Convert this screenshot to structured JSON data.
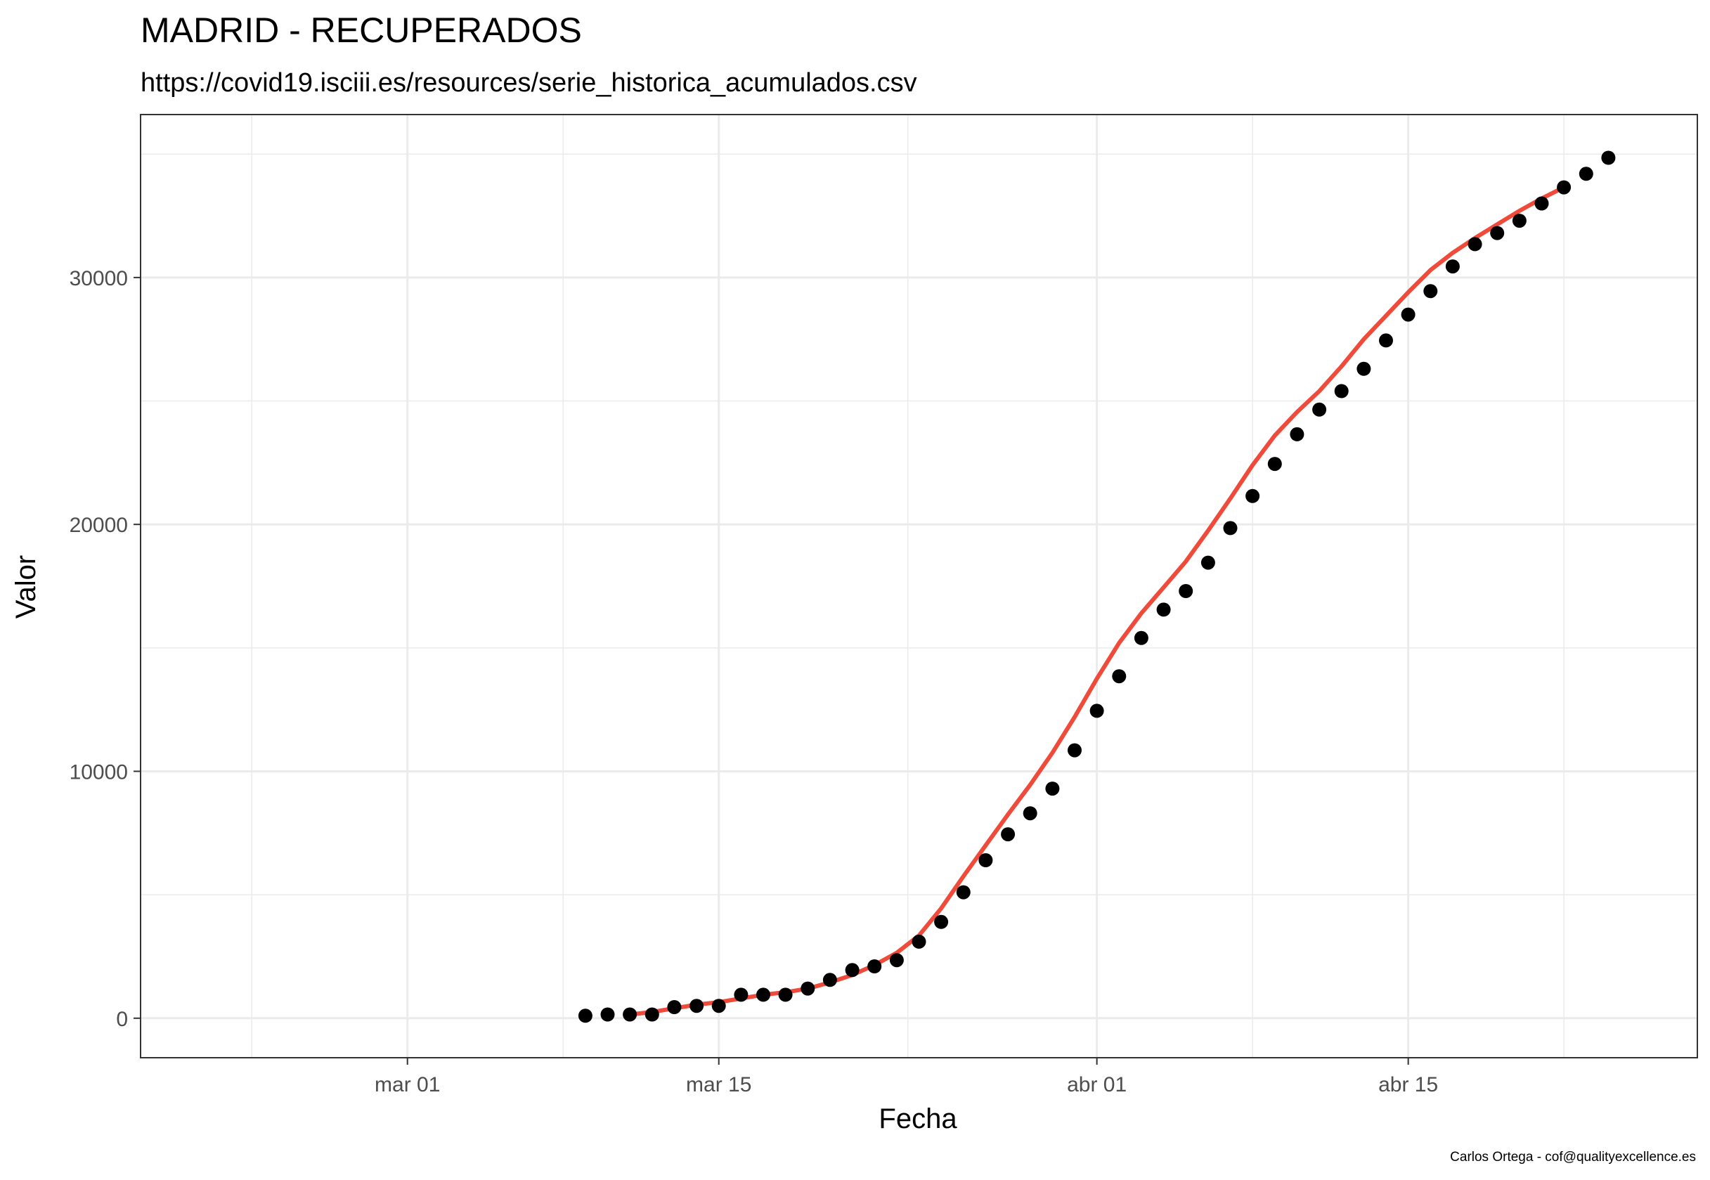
{
  "chart_data": {
    "type": "scatter",
    "title": "MADRID - RECUPERADOS",
    "subtitle": "https://covid19.isciii.es/resources/serie_historica_acumulados.csv",
    "xlabel": "Fecha",
    "ylabel": "Valor",
    "caption": "Carlos Ortega - cof@qualityexcellence.es",
    "x_ticks": [
      {
        "date": "2020-03-01",
        "label": "mar 01"
      },
      {
        "date": "2020-03-15",
        "label": "mar 15"
      },
      {
        "date": "2020-04-01",
        "label": "abr 01"
      },
      {
        "date": "2020-04-15",
        "label": "abr 15"
      }
    ],
    "y_ticks": [
      0,
      10000,
      20000,
      30000
    ],
    "xlim": [
      "2020-02-18",
      "2020-04-28"
    ],
    "ylim": [
      -1600,
      36600
    ],
    "grid": true,
    "colors": {
      "points": "#000000",
      "smooth": "#f04a3b",
      "grid": "#ebebeb",
      "border": "#333333"
    },
    "series": [
      {
        "kind": "points",
        "x": [
          "2020-03-09",
          "2020-03-10",
          "2020-03-11",
          "2020-03-12",
          "2020-03-13",
          "2020-03-14",
          "2020-03-15",
          "2020-03-16",
          "2020-03-17",
          "2020-03-18",
          "2020-03-19",
          "2020-03-20",
          "2020-03-21",
          "2020-03-22",
          "2020-03-23",
          "2020-03-24",
          "2020-03-25",
          "2020-03-26",
          "2020-03-27",
          "2020-03-28",
          "2020-03-29",
          "2020-03-30",
          "2020-03-31",
          "2020-04-01",
          "2020-04-02",
          "2020-04-03",
          "2020-04-04",
          "2020-04-05",
          "2020-04-06",
          "2020-04-07",
          "2020-04-08",
          "2020-04-09",
          "2020-04-10",
          "2020-04-11",
          "2020-04-12",
          "2020-04-13",
          "2020-04-14",
          "2020-04-15",
          "2020-04-16",
          "2020-04-17",
          "2020-04-18",
          "2020-04-19",
          "2020-04-20",
          "2020-04-21",
          "2020-04-22",
          "2020-04-23",
          "2020-04-24"
        ],
        "y": [
          100,
          150,
          150,
          150,
          450,
          500,
          500,
          950,
          950,
          950,
          1200,
          1550,
          1950,
          2100,
          2350,
          3100,
          3900,
          5100,
          6400,
          7450,
          8300,
          9300,
          10850,
          12450,
          13850,
          15400,
          16550,
          17300,
          18450,
          19850,
          21150,
          22450,
          23650,
          24650,
          25400,
          26300,
          27450,
          28500,
          29450,
          30450,
          31350,
          31800,
          32300,
          33000,
          33650,
          34200,
          34850
        ]
      },
      {
        "kind": "smooth",
        "x": [
          "2020-03-11",
          "2020-03-12",
          "2020-03-13",
          "2020-03-14",
          "2020-03-15",
          "2020-03-16",
          "2020-03-17",
          "2020-03-18",
          "2020-03-19",
          "2020-03-20",
          "2020-03-21",
          "2020-03-22",
          "2020-03-23",
          "2020-03-24",
          "2020-03-25",
          "2020-03-26",
          "2020-03-27",
          "2020-03-28",
          "2020-03-29",
          "2020-03-30",
          "2020-03-31",
          "2020-04-01",
          "2020-04-02",
          "2020-04-03",
          "2020-04-04",
          "2020-04-05",
          "2020-04-06",
          "2020-04-07",
          "2020-04-08",
          "2020-04-09",
          "2020-04-10",
          "2020-04-11",
          "2020-04-12",
          "2020-04-13",
          "2020-04-14",
          "2020-04-15",
          "2020-04-16",
          "2020-04-17",
          "2020-04-18",
          "2020-04-19",
          "2020-04-20",
          "2020-04-21",
          "2020-04-22"
        ],
        "y": [
          150,
          250,
          400,
          550,
          650,
          800,
          950,
          1050,
          1200,
          1450,
          1750,
          2150,
          2650,
          3350,
          4450,
          5750,
          7000,
          8250,
          9450,
          10750,
          12200,
          13750,
          15200,
          16400,
          17450,
          18500,
          19750,
          21050,
          22400,
          23600,
          24550,
          25400,
          26400,
          27500,
          28450,
          29400,
          30300,
          31000,
          31600,
          32150,
          32700,
          33200,
          33650
        ]
      }
    ]
  }
}
